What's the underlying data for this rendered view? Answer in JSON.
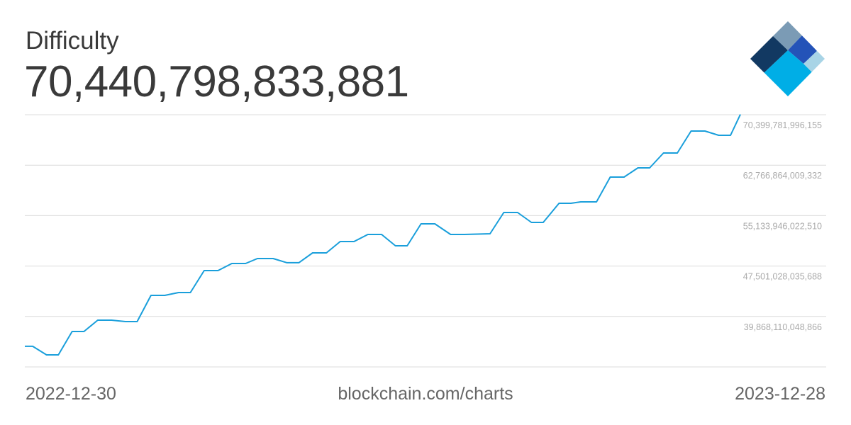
{
  "header": {
    "title": "Difficulty",
    "current_value": "70,440,798,833,881"
  },
  "footer": {
    "start_date": "2022-12-30",
    "source": "blockchain.com/charts",
    "end_date": "2023-12-28"
  },
  "logo": {
    "name": "blockchain-logo",
    "colors": [
      "#123962",
      "#7B9BB5",
      "#2453B8",
      "#A8D4E6",
      "#00AEE6"
    ]
  },
  "chart_data": {
    "type": "line",
    "title": "Difficulty",
    "x_range": [
      "2022-12-30",
      "2023-12-28"
    ],
    "ylim": [
      32235192062044,
      70399781996155
    ],
    "grid": true,
    "y_ticks": [
      {
        "value": 39868110048866,
        "label": "39,868,110,048,866"
      },
      {
        "value": 47501028035688,
        "label": "47,501,028,035,688"
      },
      {
        "value": 55133946022510,
        "label": "55,133,946,022,510"
      },
      {
        "value": 62766864009332,
        "label": "62,766,864,009,332"
      },
      {
        "value": 70399781996155,
        "label": "70,399,781,996,155"
      }
    ],
    "line_color": "#1A9FDB",
    "series": [
      {
        "points": [
          [
            "2022-12-30",
            35350000000000
          ],
          [
            "2023-01-03",
            35350000000000
          ],
          [
            "2023-01-10",
            34060000000000
          ],
          [
            "2023-01-16",
            34060000000000
          ],
          [
            "2023-01-23",
            37600000000000
          ],
          [
            "2023-01-29",
            37600000000000
          ],
          [
            "2023-02-05",
            39310000000000
          ],
          [
            "2023-02-12",
            39310000000000
          ],
          [
            "2023-02-19",
            39100000000000
          ],
          [
            "2023-02-25",
            39100000000000
          ],
          [
            "2023-03-04",
            43060000000000
          ],
          [
            "2023-03-11",
            43060000000000
          ],
          [
            "2023-03-18",
            43490000000000
          ],
          [
            "2023-03-24",
            43490000000000
          ],
          [
            "2023-03-31",
            46820000000000
          ],
          [
            "2023-04-07",
            46820000000000
          ],
          [
            "2023-04-14",
            47890000000000
          ],
          [
            "2023-04-21",
            47890000000000
          ],
          [
            "2023-04-27",
            48640000000000
          ],
          [
            "2023-05-05",
            48640000000000
          ],
          [
            "2023-05-12",
            48000000000000
          ],
          [
            "2023-05-18",
            48000000000000
          ],
          [
            "2023-05-25",
            49500000000000
          ],
          [
            "2023-06-01",
            49500000000000
          ],
          [
            "2023-06-08",
            51210000000000
          ],
          [
            "2023-06-15",
            51210000000000
          ],
          [
            "2023-06-22",
            52280000000000
          ],
          [
            "2023-06-29",
            52280000000000
          ],
          [
            "2023-07-06",
            50570000000000
          ],
          [
            "2023-07-12",
            50570000000000
          ],
          [
            "2023-07-19",
            53890000000000
          ],
          [
            "2023-07-26",
            53890000000000
          ],
          [
            "2023-08-03",
            52280000000000
          ],
          [
            "2023-08-10",
            52280000000000
          ],
          [
            "2023-08-23",
            52390000000000
          ],
          [
            "2023-08-30",
            55610000000000
          ],
          [
            "2023-09-06",
            55610000000000
          ],
          [
            "2023-09-13",
            54110000000000
          ],
          [
            "2023-09-19",
            54110000000000
          ],
          [
            "2023-09-27",
            57000000000000
          ],
          [
            "2023-10-03",
            57000000000000
          ],
          [
            "2023-10-08",
            57210000000000
          ],
          [
            "2023-10-16",
            57210000000000
          ],
          [
            "2023-10-23",
            60970000000000
          ],
          [
            "2023-10-30",
            60970000000000
          ],
          [
            "2023-11-06",
            62360000000000
          ],
          [
            "2023-11-12",
            62360000000000
          ],
          [
            "2023-11-19",
            64610000000000
          ],
          [
            "2023-11-26",
            64610000000000
          ],
          [
            "2023-12-03",
            67930000000000
          ],
          [
            "2023-12-10",
            67930000000000
          ],
          [
            "2023-12-17",
            67290000000000
          ],
          [
            "2023-12-23",
            67290000000000
          ],
          [
            "2023-12-28",
            70440798833881
          ]
        ]
      }
    ]
  }
}
